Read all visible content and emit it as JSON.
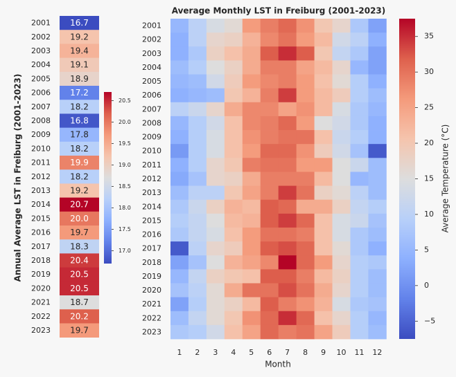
{
  "chart_data": [
    {
      "type": "heatmap",
      "ylabel": "Annual Average LST in Freiburg (2001-2023)",
      "years": [
        "2001",
        "2002",
        "2003",
        "2004",
        "2005",
        "2006",
        "2007",
        "2008",
        "2009",
        "2010",
        "2011",
        "2012",
        "2013",
        "2014",
        "2015",
        "2016",
        "2017",
        "2018",
        "2019",
        "2020",
        "2021",
        "2022",
        "2023"
      ],
      "values": [
        16.7,
        19.2,
        19.4,
        19.1,
        18.9,
        17.2,
        18.2,
        16.8,
        17.8,
        18.2,
        19.9,
        18.2,
        19.2,
        20.7,
        20.0,
        19.7,
        18.3,
        20.4,
        20.5,
        20.5,
        18.7,
        20.2,
        19.7
      ],
      "value_labels": [
        "16.7",
        "19.2",
        "19.4",
        "19.1",
        "18.9",
        "17.2",
        "18.2",
        "16.8",
        "17.8",
        "18.2",
        "19.9",
        "18.2",
        "19.2",
        "20.7",
        "20.0",
        "19.7",
        "18.3",
        "20.4",
        "20.5",
        "20.5",
        "18.7",
        "20.2",
        "19.7"
      ],
      "colorbar": {
        "min": 16.7,
        "max": 20.7,
        "cmap": "coolwarm",
        "ticks": [
          17.0,
          17.5,
          18.0,
          18.5,
          19.0,
          19.5,
          20.0,
          20.5
        ],
        "tick_labels": [
          "17.0",
          "17.5",
          "18.0",
          "18.5",
          "19.0",
          "19.5",
          "20.0",
          "20.5"
        ]
      }
    },
    {
      "type": "heatmap",
      "title": "Average Monthly LST in Freiburg (2001-2023)",
      "xlabel": "Month",
      "colorbar_label": "Average Temperature (°C)",
      "months": [
        "1",
        "2",
        "3",
        "4",
        "5",
        "6",
        "7",
        "8",
        "9",
        "10",
        "11",
        "12"
      ],
      "years": [
        "2001",
        "2002",
        "2003",
        "2004",
        "2005",
        "2006",
        "2007",
        "2008",
        "2009",
        "2010",
        "2011",
        "2012",
        "2013",
        "2014",
        "2015",
        "2016",
        "2017",
        "2018",
        "2019",
        "2020",
        "2021",
        "2022",
        "2023"
      ],
      "values": [
        [
          5,
          10,
          14,
          16,
          26,
          29,
          31,
          27,
          20,
          17,
          8,
          2
        ],
        [
          4,
          10,
          17,
          18,
          23,
          28,
          30,
          26,
          22,
          13,
          10,
          4
        ],
        [
          4,
          8,
          18,
          21,
          24,
          32,
          35,
          32,
          20,
          11,
          8,
          2
        ],
        [
          6,
          9,
          15,
          18,
          24,
          29,
          29,
          25,
          22,
          17,
          5,
          2
        ],
        [
          5,
          6,
          13,
          19,
          26,
          28,
          29,
          26,
          21,
          16,
          9,
          4
        ],
        [
          4,
          5,
          6,
          20,
          23,
          29,
          34,
          26,
          22,
          19,
          9,
          6
        ],
        [
          10,
          12,
          17,
          24,
          28,
          28,
          25,
          27,
          22,
          14,
          8,
          5
        ],
        [
          5,
          9,
          13,
          21,
          28,
          29,
          31,
          26,
          15,
          13,
          8,
          4
        ],
        [
          4,
          9,
          14,
          21,
          27,
          29,
          30,
          30,
          21,
          12,
          9,
          4
        ],
        [
          1,
          9,
          14,
          21,
          26,
          31,
          31,
          27,
          19,
          13,
          7,
          -6
        ],
        [
          4,
          9,
          17,
          20,
          29,
          30,
          30,
          26,
          26,
          15,
          12,
          6
        ],
        [
          3,
          7,
          17,
          18,
          24,
          29,
          29,
          29,
          22,
          15,
          5,
          6
        ],
        [
          6,
          10,
          10,
          20,
          25,
          29,
          34,
          30,
          18,
          16,
          10,
          6
        ],
        [
          8,
          12,
          18,
          23,
          22,
          32,
          31,
          24,
          24,
          18,
          11,
          9
        ],
        [
          9,
          11,
          15,
          22,
          23,
          32,
          34,
          31,
          21,
          14,
          12,
          7
        ],
        [
          8,
          11,
          14,
          21,
          26,
          30,
          30,
          29,
          21,
          14,
          8,
          6
        ],
        [
          -6,
          10,
          17,
          19,
          26,
          32,
          33,
          31,
          21,
          16,
          8,
          4
        ],
        [
          2,
          7,
          15,
          23,
          25,
          28,
          38,
          31,
          26,
          17,
          9,
          8
        ],
        [
          5,
          11,
          18,
          20,
          21,
          32,
          32,
          29,
          22,
          18,
          9,
          6
        ],
        [
          7,
          10,
          16,
          24,
          30,
          30,
          33,
          30,
          24,
          17,
          9,
          6
        ],
        [
          2,
          9,
          16,
          18,
          22,
          32,
          29,
          27,
          23,
          14,
          8,
          7
        ],
        [
          6,
          11,
          16,
          20,
          27,
          31,
          35,
          31,
          21,
          17,
          9,
          5
        ],
        [
          8,
          9,
          13,
          21,
          25,
          31,
          29,
          30,
          25,
          19,
          9,
          6
        ]
      ],
      "colorbar": {
        "min": -7.5,
        "max": 37.5,
        "cmap": "coolwarm",
        "ticks": [
          -5,
          0,
          5,
          10,
          15,
          20,
          25,
          30,
          35
        ],
        "tick_labels": [
          "−5",
          "0",
          "5",
          "10",
          "15",
          "20",
          "25",
          "30",
          "35"
        ]
      }
    }
  ]
}
